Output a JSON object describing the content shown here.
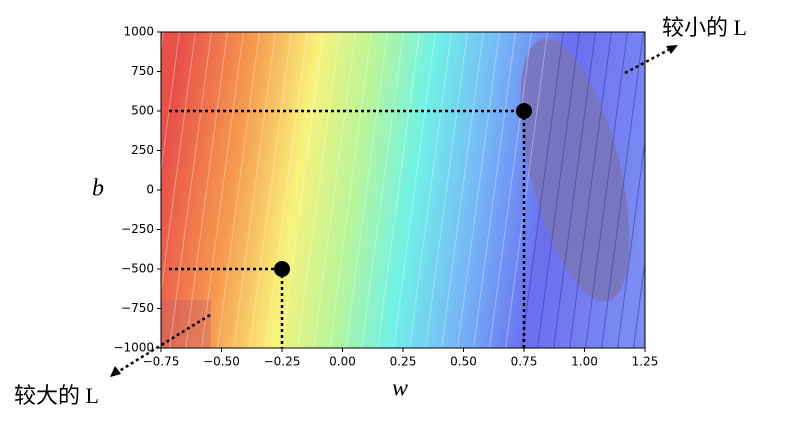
{
  "chart_data": {
    "type": "scatter",
    "x": [
      0.75,
      -0.25
    ],
    "y": [
      500,
      -500
    ],
    "color": "#000000",
    "xlabel": "w",
    "ylabel": "b",
    "xlim": [
      -0.75,
      1.25
    ],
    "ylim": [
      -1000,
      1000
    ],
    "xticks": [
      {
        "value": -0.75,
        "label": "−0.75"
      },
      {
        "value": -0.5,
        "label": "−0.50"
      },
      {
        "value": -0.25,
        "label": "−0.25"
      },
      {
        "value": 0,
        "label": "0.00"
      },
      {
        "value": 0.25,
        "label": "0.25"
      },
      {
        "value": 0.5,
        "label": "0.50"
      },
      {
        "value": 0.75,
        "label": "0.75"
      },
      {
        "value": 1,
        "label": "1.00"
      },
      {
        "value": 1.25,
        "label": "1.25"
      }
    ],
    "yticks": [
      {
        "value": -1000,
        "label": "−1000"
      },
      {
        "value": -750,
        "label": "−750"
      },
      {
        "value": -500,
        "label": "−500"
      },
      {
        "value": -250,
        "label": "−250"
      },
      0,
      250,
      500,
      750,
      1000
    ],
    "annotations": [
      "较小的 L",
      "较大的 L"
    ]
  }
}
